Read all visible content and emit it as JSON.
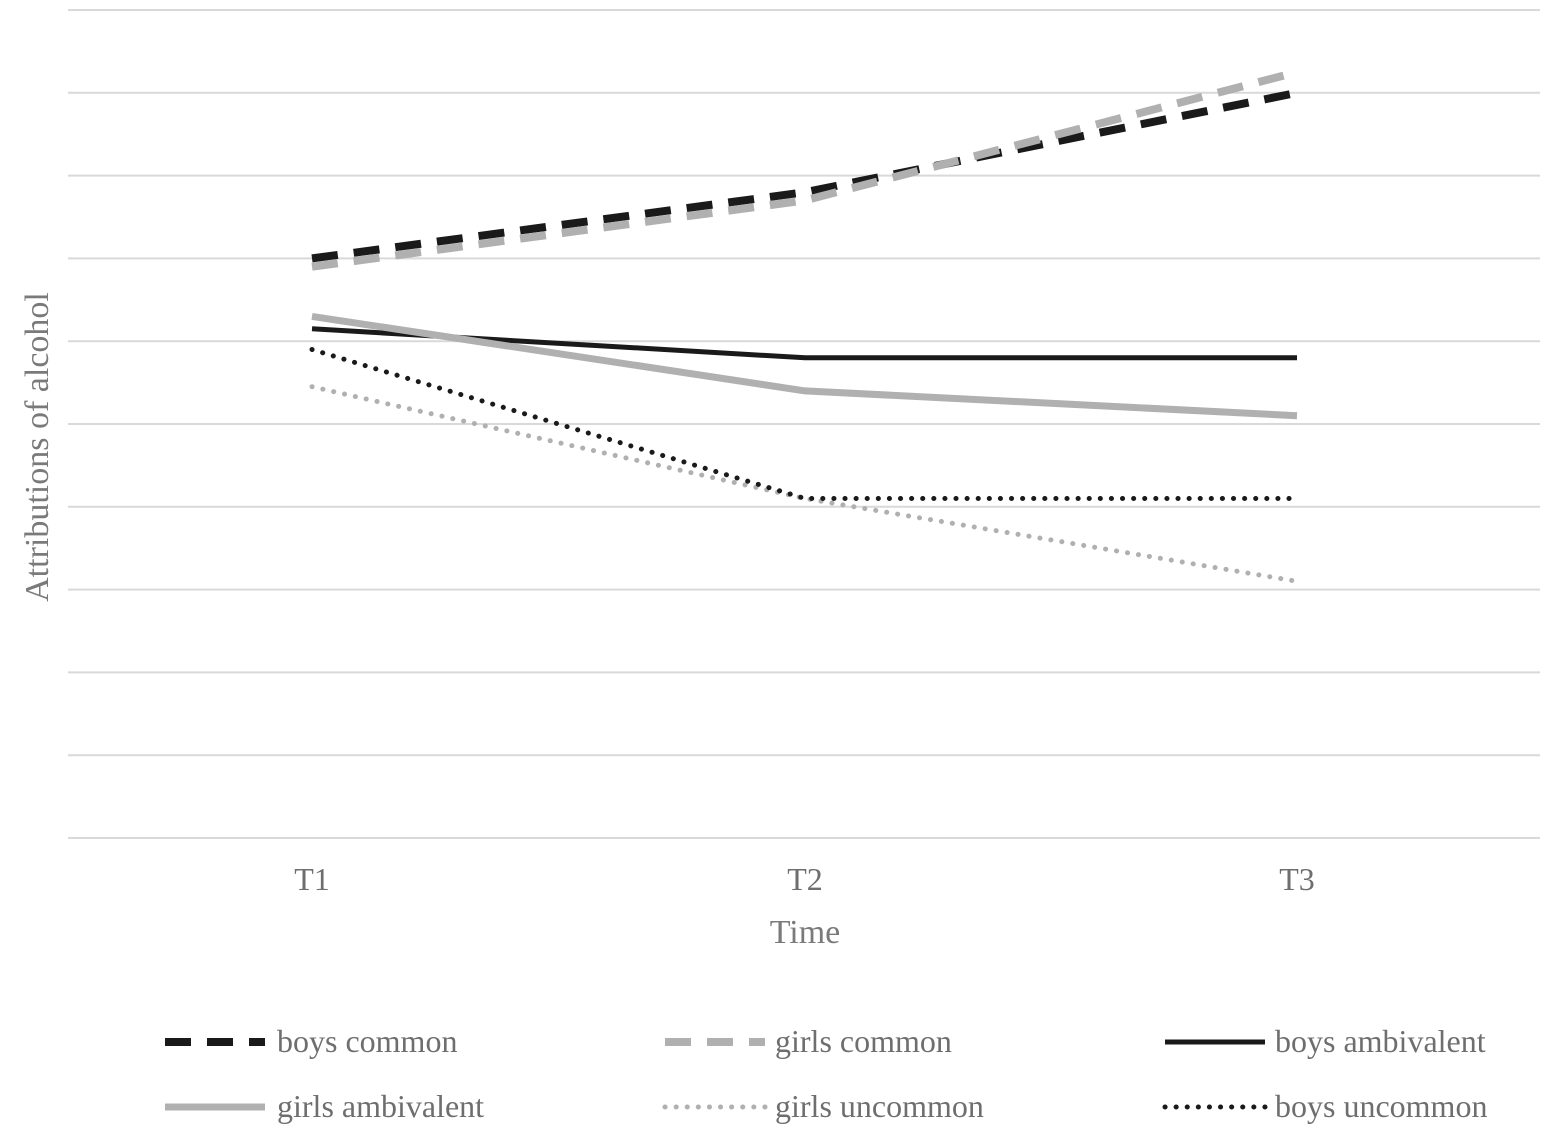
{
  "chart_data": {
    "type": "line",
    "title": "",
    "xlabel": "Time",
    "ylabel": "Attributions of alcohol",
    "categories": [
      "T1",
      "T2",
      "T3"
    ],
    "ylim": [
      0,
      10
    ],
    "grid": true,
    "legend_position": "bottom",
    "series": [
      {
        "name": "boys common",
        "values": [
          7.0,
          7.8,
          9.0
        ],
        "color": "#1a1a1a",
        "style": "dashed"
      },
      {
        "name": "girls common",
        "values": [
          6.9,
          7.7,
          9.25
        ],
        "color": "#b0b0b0",
        "style": "dashed"
      },
      {
        "name": "boys ambivalent",
        "values": [
          6.15,
          5.8,
          5.8
        ],
        "color": "#1a1a1a",
        "style": "solid"
      },
      {
        "name": "girls ambivalent",
        "values": [
          6.3,
          5.4,
          5.1
        ],
        "color": "#b0b0b0",
        "style": "solid"
      },
      {
        "name": "girls uncommon",
        "values": [
          5.45,
          4.1,
          3.1
        ],
        "color": "#b0b0b0",
        "style": "dotted"
      },
      {
        "name": "boys uncommon",
        "values": [
          5.9,
          4.1,
          4.1
        ],
        "color": "#1a1a1a",
        "style": "dotted"
      }
    ]
  }
}
